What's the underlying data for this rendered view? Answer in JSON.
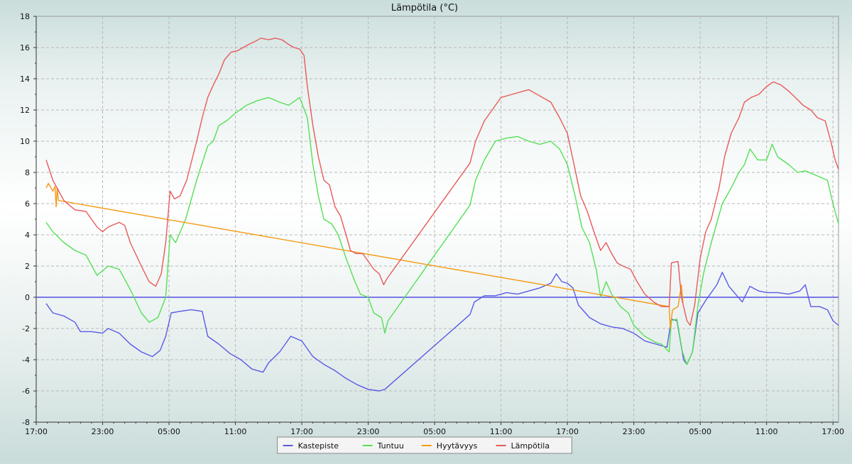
{
  "chart_data": {
    "type": "line",
    "title": "Lämpötila (°C)",
    "xlabel": "",
    "ylabel": "",
    "ylim": [
      -8,
      18
    ],
    "xlim": [
      0,
      72.5
    ],
    "x_unit": "hours since first tick (17:00)",
    "yticks": [
      -8,
      -6,
      -4,
      -2,
      0,
      2,
      4,
      6,
      8,
      10,
      12,
      14,
      16,
      18
    ],
    "xticks": [
      {
        "x": 0,
        "label": "17:00"
      },
      {
        "x": 6,
        "label": "23:00"
      },
      {
        "x": 12,
        "label": "05:00"
      },
      {
        "x": 18,
        "label": "11:00"
      },
      {
        "x": 24,
        "label": "17:00"
      },
      {
        "x": 30,
        "label": "23:00"
      },
      {
        "x": 36,
        "label": "05:00"
      },
      {
        "x": 42,
        "label": "11:00"
      },
      {
        "x": 48,
        "label": "17:00"
      },
      {
        "x": 54,
        "label": "23:00"
      },
      {
        "x": 60,
        "label": "05:00"
      },
      {
        "x": 66,
        "label": "11:00"
      },
      {
        "x": 72,
        "label": "17:00"
      }
    ],
    "grid": true,
    "legend_position": "bottom-center",
    "reference_line": {
      "y": 0,
      "color": "#5050e0"
    },
    "series": [
      {
        "name": "Kastepiste",
        "color": "#5a5ae6",
        "points": [
          [
            0.9,
            -0.4
          ],
          [
            1.5,
            -1.0
          ],
          [
            2.5,
            -1.2
          ],
          [
            3.5,
            -1.6
          ],
          [
            4.0,
            -2.2
          ],
          [
            5.0,
            -2.2
          ],
          [
            6.0,
            -2.3
          ],
          [
            6.5,
            -2.0
          ],
          [
            7.5,
            -2.3
          ],
          [
            8.5,
            -3.0
          ],
          [
            9.5,
            -3.5
          ],
          [
            10.5,
            -3.8
          ],
          [
            11.2,
            -3.4
          ],
          [
            11.7,
            -2.5
          ],
          [
            12.2,
            -1.0
          ],
          [
            13.0,
            -0.9
          ],
          [
            14.0,
            -0.8
          ],
          [
            15.0,
            -0.9
          ],
          [
            15.5,
            -2.5
          ],
          [
            16.5,
            -3.0
          ],
          [
            17.5,
            -3.6
          ],
          [
            18.5,
            -4.0
          ],
          [
            19.5,
            -4.6
          ],
          [
            20.5,
            -4.8
          ],
          [
            21.0,
            -4.2
          ],
          [
            22.0,
            -3.5
          ],
          [
            23.0,
            -2.5
          ],
          [
            24.0,
            -2.8
          ],
          [
            25.0,
            -3.8
          ],
          [
            26.0,
            -4.3
          ],
          [
            27.0,
            -4.7
          ],
          [
            28.0,
            -5.2
          ],
          [
            29.0,
            -5.6
          ],
          [
            30.0,
            -5.9
          ],
          [
            31.0,
            -6.0
          ],
          [
            31.5,
            -5.9
          ],
          [
            39.2,
            -1.1
          ],
          [
            39.6,
            -0.3
          ],
          [
            40.5,
            0.1
          ],
          [
            41.5,
            0.1
          ],
          [
            42.5,
            0.3
          ],
          [
            43.5,
            0.2
          ],
          [
            44.5,
            0.4
          ],
          [
            45.5,
            0.6
          ],
          [
            46.5,
            0.9
          ],
          [
            47.0,
            1.5
          ],
          [
            47.5,
            1.0
          ],
          [
            48.0,
            0.9
          ],
          [
            48.5,
            0.6
          ],
          [
            49.0,
            -0.5
          ],
          [
            50.0,
            -1.3
          ],
          [
            51.0,
            -1.7
          ],
          [
            52.0,
            -1.9
          ],
          [
            53.0,
            -2.0
          ],
          [
            54.0,
            -2.3
          ],
          [
            55.0,
            -2.8
          ],
          [
            56.0,
            -3.0
          ],
          [
            57.0,
            -3.2
          ],
          [
            57.4,
            -1.4
          ],
          [
            57.9,
            -1.5
          ],
          [
            58.5,
            -4.0
          ],
          [
            58.8,
            -4.3
          ],
          [
            59.3,
            -3.5
          ],
          [
            59.8,
            -1.0
          ],
          [
            60.5,
            -0.2
          ],
          [
            61.5,
            0.8
          ],
          [
            62.0,
            1.6
          ],
          [
            62.6,
            0.7
          ],
          [
            63.2,
            0.2
          ],
          [
            63.8,
            -0.3
          ],
          [
            64.5,
            0.7
          ],
          [
            65.3,
            0.4
          ],
          [
            66.0,
            0.3
          ],
          [
            67.0,
            0.3
          ],
          [
            68.0,
            0.2
          ],
          [
            69.0,
            0.4
          ],
          [
            69.5,
            0.8
          ],
          [
            70.0,
            -0.6
          ],
          [
            70.8,
            -0.6
          ],
          [
            71.5,
            -0.8
          ],
          [
            72.0,
            -1.5
          ],
          [
            72.5,
            -1.8
          ]
        ]
      },
      {
        "name": "Tuntuu",
        "color": "#55e055",
        "points": [
          [
            0.9,
            4.8
          ],
          [
            1.5,
            4.2
          ],
          [
            2.5,
            3.5
          ],
          [
            3.5,
            3.0
          ],
          [
            4.5,
            2.7
          ],
          [
            5.5,
            1.4
          ],
          [
            6.5,
            2.0
          ],
          [
            7.5,
            1.8
          ],
          [
            8.5,
            0.5
          ],
          [
            9.5,
            -1.0
          ],
          [
            10.2,
            -1.6
          ],
          [
            11.0,
            -1.3
          ],
          [
            11.7,
            0.0
          ],
          [
            12.1,
            4.0
          ],
          [
            12.6,
            3.5
          ],
          [
            13.5,
            5.0
          ],
          [
            14.5,
            7.5
          ],
          [
            15.5,
            9.7
          ],
          [
            16.0,
            10.0
          ],
          [
            16.5,
            11.0
          ],
          [
            17.2,
            11.3
          ],
          [
            18.0,
            11.8
          ],
          [
            19.0,
            12.3
          ],
          [
            20.0,
            12.6
          ],
          [
            21.0,
            12.8
          ],
          [
            22.0,
            12.5
          ],
          [
            22.8,
            12.3
          ],
          [
            23.8,
            12.8
          ],
          [
            24.5,
            11.5
          ],
          [
            25.0,
            8.5
          ],
          [
            25.5,
            6.5
          ],
          [
            26.0,
            5.0
          ],
          [
            26.7,
            4.7
          ],
          [
            27.3,
            4.0
          ],
          [
            28.0,
            2.5
          ],
          [
            28.8,
            1.0
          ],
          [
            29.3,
            0.2
          ],
          [
            30.0,
            0.0
          ],
          [
            30.5,
            -1.0
          ],
          [
            31.2,
            -1.3
          ],
          [
            31.5,
            -2.3
          ],
          [
            31.8,
            -1.5
          ],
          [
            39.2,
            5.9
          ],
          [
            39.7,
            7.5
          ],
          [
            40.5,
            8.8
          ],
          [
            41.5,
            10.0
          ],
          [
            42.5,
            10.2
          ],
          [
            43.5,
            10.3
          ],
          [
            44.5,
            10.0
          ],
          [
            45.5,
            9.8
          ],
          [
            46.5,
            10.0
          ],
          [
            47.3,
            9.5
          ],
          [
            48.0,
            8.5
          ],
          [
            48.7,
            6.5
          ],
          [
            49.3,
            4.5
          ],
          [
            50.0,
            3.5
          ],
          [
            50.6,
            1.8
          ],
          [
            51.0,
            0.0
          ],
          [
            51.5,
            1.0
          ],
          [
            52.0,
            0.2
          ],
          [
            52.8,
            -0.6
          ],
          [
            53.5,
            -1.0
          ],
          [
            54.0,
            -1.8
          ],
          [
            55.0,
            -2.5
          ],
          [
            56.0,
            -2.9
          ],
          [
            56.5,
            -3.0
          ],
          [
            57.2,
            -3.5
          ],
          [
            57.4,
            -1.5
          ],
          [
            57.9,
            -1.4
          ],
          [
            58.4,
            -3.5
          ],
          [
            58.8,
            -4.3
          ],
          [
            59.3,
            -3.5
          ],
          [
            59.8,
            -0.5
          ],
          [
            60.3,
            1.5
          ],
          [
            61.0,
            3.5
          ],
          [
            62.0,
            6.0
          ],
          [
            62.8,
            7.0
          ],
          [
            63.5,
            8.0
          ],
          [
            64.0,
            8.5
          ],
          [
            64.5,
            9.5
          ],
          [
            65.2,
            8.8
          ],
          [
            66.0,
            8.8
          ],
          [
            66.5,
            9.8
          ],
          [
            67.0,
            9.0
          ],
          [
            68.0,
            8.5
          ],
          [
            68.8,
            8.0
          ],
          [
            69.5,
            8.1
          ],
          [
            70.5,
            7.8
          ],
          [
            71.5,
            7.5
          ],
          [
            72.0,
            6.0
          ],
          [
            72.5,
            4.7
          ]
        ]
      },
      {
        "name": "Hyytävyys",
        "color": "#f59a14",
        "points": [
          [
            0.9,
            7.0
          ],
          [
            1.1,
            7.3
          ],
          [
            1.5,
            6.8
          ],
          [
            1.7,
            7.1
          ],
          [
            1.8,
            5.8
          ],
          [
            1.9,
            7.0
          ],
          [
            2.0,
            6.2
          ],
          [
            57.2,
            -0.6
          ],
          [
            57.3,
            -2.0
          ],
          [
            57.5,
            -0.8
          ],
          [
            58.0,
            -0.6
          ],
          [
            58.3,
            0.8
          ],
          [
            58.45,
            -0.4
          ]
        ]
      },
      {
        "name": "Lämpötila",
        "color": "#e85a5a",
        "points": [
          [
            0.9,
            8.8
          ],
          [
            1.5,
            7.5
          ],
          [
            2.5,
            6.2
          ],
          [
            3.5,
            5.6
          ],
          [
            4.5,
            5.5
          ],
          [
            5.0,
            5.0
          ],
          [
            5.5,
            4.5
          ],
          [
            6.0,
            4.2
          ],
          [
            6.5,
            4.5
          ],
          [
            7.5,
            4.8
          ],
          [
            8.0,
            4.6
          ],
          [
            8.5,
            3.5
          ],
          [
            9.5,
            2.0
          ],
          [
            10.2,
            1.0
          ],
          [
            10.8,
            0.7
          ],
          [
            11.3,
            1.5
          ],
          [
            11.7,
            3.5
          ],
          [
            12.1,
            6.8
          ],
          [
            12.5,
            6.3
          ],
          [
            13.0,
            6.5
          ],
          [
            13.6,
            7.5
          ],
          [
            14.5,
            10.0
          ],
          [
            15.0,
            11.5
          ],
          [
            15.5,
            12.8
          ],
          [
            16.0,
            13.6
          ],
          [
            16.5,
            14.3
          ],
          [
            17.0,
            15.2
          ],
          [
            17.6,
            15.7
          ],
          [
            18.2,
            15.8
          ],
          [
            18.7,
            16.0
          ],
          [
            19.2,
            16.2
          ],
          [
            19.8,
            16.4
          ],
          [
            20.3,
            16.6
          ],
          [
            21.0,
            16.5
          ],
          [
            21.6,
            16.6
          ],
          [
            22.2,
            16.5
          ],
          [
            22.8,
            16.2
          ],
          [
            23.3,
            16.0
          ],
          [
            23.8,
            15.9
          ],
          [
            24.2,
            15.5
          ],
          [
            24.5,
            13.5
          ],
          [
            25.0,
            11.0
          ],
          [
            25.5,
            9.0
          ],
          [
            26.0,
            7.5
          ],
          [
            26.5,
            7.2
          ],
          [
            27.0,
            5.8
          ],
          [
            27.5,
            5.2
          ],
          [
            28.0,
            4.0
          ],
          [
            28.4,
            3.0
          ],
          [
            28.9,
            2.8
          ],
          [
            29.5,
            2.8
          ],
          [
            30.0,
            2.3
          ],
          [
            30.5,
            1.8
          ],
          [
            31.0,
            1.5
          ],
          [
            31.4,
            0.8
          ],
          [
            31.7,
            1.2
          ],
          [
            39.2,
            8.6
          ],
          [
            39.7,
            10.0
          ],
          [
            40.5,
            11.3
          ],
          [
            41.2,
            12.0
          ],
          [
            42.0,
            12.8
          ],
          [
            43.0,
            13.0
          ],
          [
            44.0,
            13.2
          ],
          [
            44.5,
            13.3
          ],
          [
            45.5,
            12.9
          ],
          [
            46.5,
            12.5
          ],
          [
            47.3,
            11.5
          ],
          [
            48.0,
            10.5
          ],
          [
            48.6,
            8.5
          ],
          [
            49.2,
            6.5
          ],
          [
            49.8,
            5.5
          ],
          [
            50.4,
            4.2
          ],
          [
            51.0,
            3.0
          ],
          [
            51.5,
            3.5
          ],
          [
            52.0,
            2.8
          ],
          [
            52.5,
            2.2
          ],
          [
            53.0,
            2.0
          ],
          [
            53.7,
            1.8
          ],
          [
            54.3,
            1.0
          ],
          [
            55.0,
            0.2
          ],
          [
            55.8,
            -0.3
          ],
          [
            56.5,
            -0.6
          ],
          [
            57.2,
            -0.6
          ],
          [
            57.4,
            2.2
          ],
          [
            58.0,
            2.3
          ],
          [
            58.3,
            0.0
          ],
          [
            58.8,
            -1.5
          ],
          [
            59.1,
            -1.8
          ],
          [
            59.5,
            -0.5
          ],
          [
            60.0,
            2.5
          ],
          [
            60.5,
            4.2
          ],
          [
            61.0,
            5.0
          ],
          [
            61.7,
            7.0
          ],
          [
            62.2,
            9.0
          ],
          [
            62.8,
            10.5
          ],
          [
            63.5,
            11.5
          ],
          [
            64.0,
            12.5
          ],
          [
            64.6,
            12.8
          ],
          [
            65.3,
            13.0
          ],
          [
            66.0,
            13.5
          ],
          [
            66.6,
            13.8
          ],
          [
            67.3,
            13.6
          ],
          [
            68.0,
            13.2
          ],
          [
            68.6,
            12.8
          ],
          [
            69.3,
            12.3
          ],
          [
            70.0,
            12.0
          ],
          [
            70.6,
            11.5
          ],
          [
            71.3,
            11.3
          ],
          [
            71.8,
            10.0
          ],
          [
            72.2,
            8.8
          ],
          [
            72.5,
            8.2
          ]
        ]
      }
    ]
  }
}
